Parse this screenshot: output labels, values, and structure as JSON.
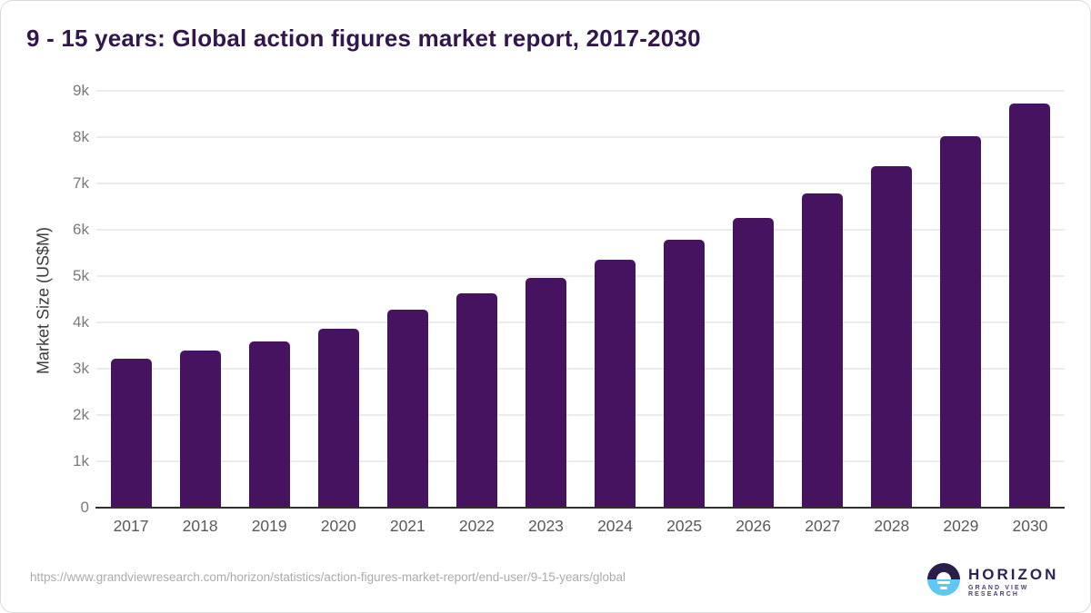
{
  "title": "9 - 15 years: Global action figures market report, 2017-2030",
  "chart_data": {
    "type": "bar",
    "title": "9 - 15 years: Global action figures market report, 2017-2030",
    "categories": [
      "2017",
      "2018",
      "2019",
      "2020",
      "2021",
      "2022",
      "2023",
      "2024",
      "2025",
      "2026",
      "2027",
      "2028",
      "2029",
      "2030"
    ],
    "values": [
      3215,
      3395,
      3590,
      3855,
      4280,
      4630,
      4960,
      5360,
      5785,
      6260,
      6780,
      7370,
      8010,
      8730
    ],
    "xlabel": "",
    "ylabel": "Market Size (US$M)",
    "ylim": [
      0,
      9000
    ],
    "ytick_step": 1000,
    "ytick_labels": [
      "0",
      "1k",
      "2k",
      "3k",
      "4k",
      "5k",
      "6k",
      "7k",
      "8k",
      "9k"
    ],
    "grid": true,
    "legend": false,
    "bar_color": "#451360"
  },
  "colors": {
    "bar": "#451360",
    "title_text": "#32174d",
    "gridline": "#ececec",
    "axis_line": "#303030",
    "ytick_text": "#7a7a7a",
    "xtick_text": "#595959",
    "url_text": "#ababab",
    "logo_dark": "#2b1d4a",
    "logo_blue": "#5fc8f2"
  },
  "footer": {
    "source_url": "https://www.grandviewresearch.com/horizon/statistics/action-figures-market-report/end-user/9-15-years/global",
    "logo": {
      "name": "HORIZON",
      "subtitle": "GRAND VIEW RESEARCH"
    }
  }
}
